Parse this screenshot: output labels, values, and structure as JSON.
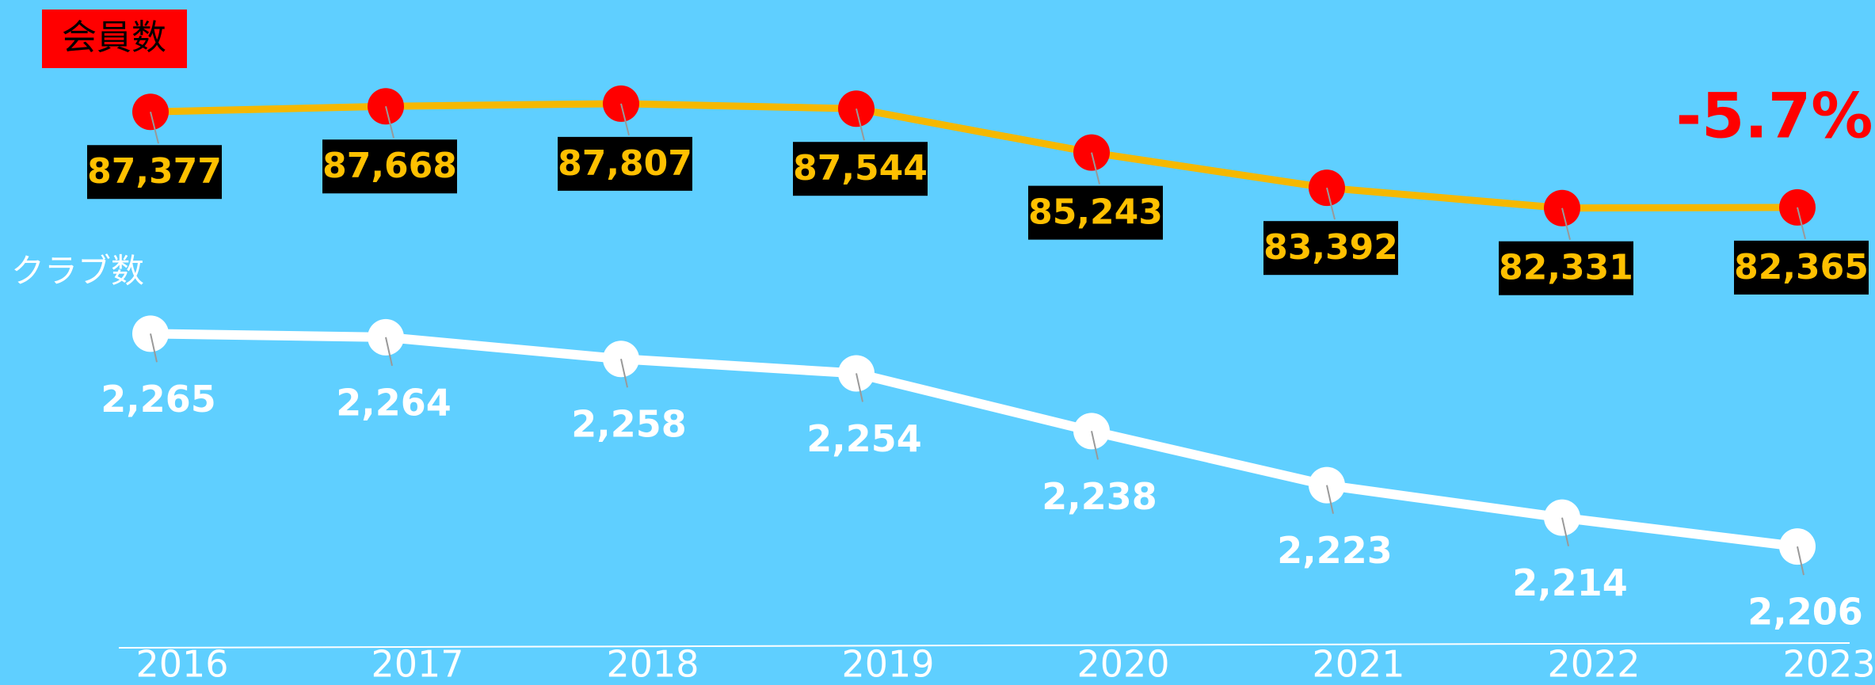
{
  "chart_data": {
    "type": "line",
    "categories": [
      "2016",
      "2017",
      "2018",
      "2019",
      "2020",
      "2021",
      "2022",
      "2023"
    ],
    "series": [
      {
        "name": "会員数",
        "color": "#f5b800",
        "marker_color": "#ff0000",
        "values": [
          87377,
          87668,
          87807,
          87544,
          85243,
          83392,
          82331,
          82365
        ],
        "value_labels": [
          "87,377",
          "87,668",
          "87,807",
          "87,544",
          "85,243",
          "83,392",
          "82,331",
          "82,365"
        ]
      },
      {
        "name": "クラブ数",
        "color": "#ffffff",
        "marker_color": "#ffffff",
        "axis": "y2",
        "values": [
          2265,
          2264,
          2258,
          2254,
          2238,
          2223,
          2214,
          2206
        ],
        "value_labels": [
          "2,265",
          "2,264",
          "2,258",
          "2,254",
          "2,238",
          "2,223",
          "2,214",
          "2,206"
        ]
      }
    ],
    "ylim": [
      78000,
      91000
    ],
    "y2lim": [
      2190,
      2280
    ],
    "annotation": "-5.7%"
  }
}
